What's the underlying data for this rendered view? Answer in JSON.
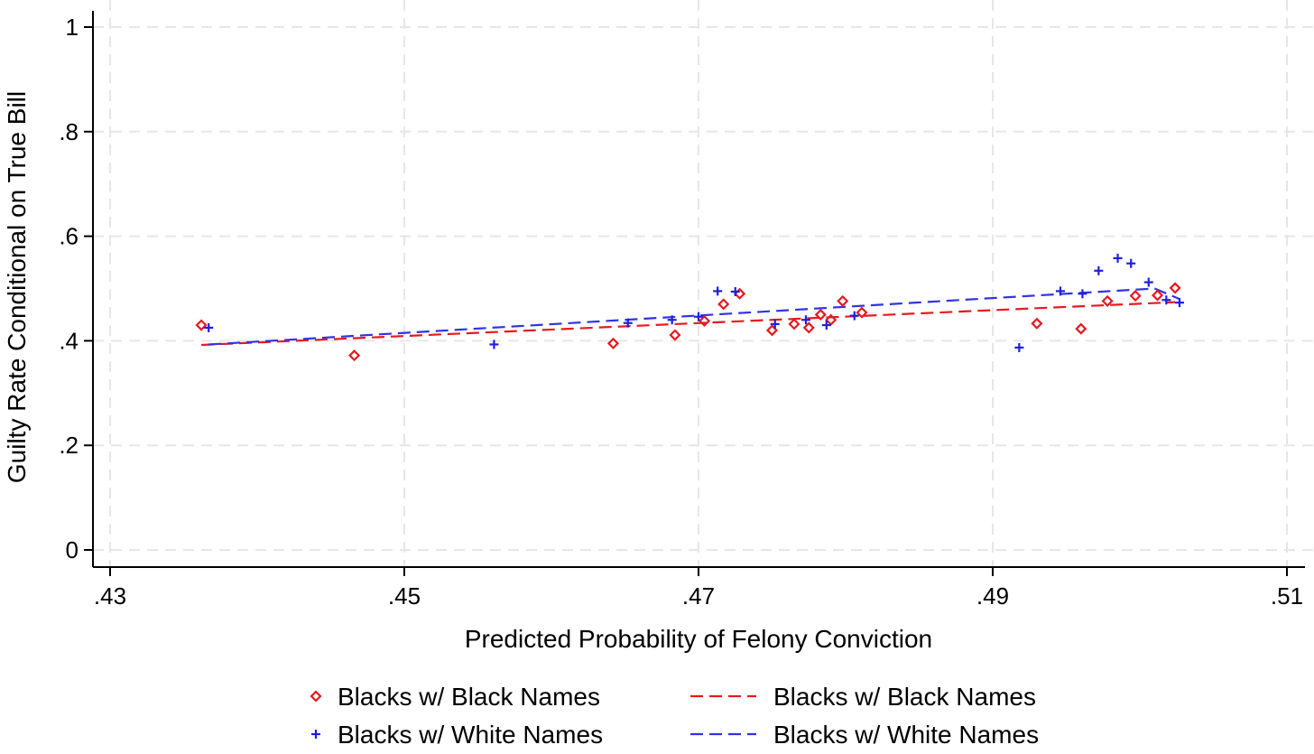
{
  "chart_data": {
    "type": "scatter",
    "xlabel": "Predicted Probability of Felony Conviction",
    "ylabel": "Guilty Rate Conditional on True Bill",
    "xlim": [
      0.43,
      0.51
    ],
    "ylim": [
      0,
      1
    ],
    "x_ticks": [
      {
        "value": 0.43,
        "label": ".43"
      },
      {
        "value": 0.45,
        "label": ".45"
      },
      {
        "value": 0.47,
        "label": ".47"
      },
      {
        "value": 0.49,
        "label": ".49"
      },
      {
        "value": 0.51,
        "label": ".51"
      }
    ],
    "y_ticks": [
      {
        "value": 0,
        "label": "0"
      },
      {
        "value": 0.2,
        "label": ".2"
      },
      {
        "value": 0.4,
        "label": ".4"
      },
      {
        "value": 0.6,
        "label": ".6"
      },
      {
        "value": 0.8,
        "label": ".8"
      },
      {
        "value": 1,
        "label": "1"
      }
    ],
    "grid": true,
    "legend_position": "bottom",
    "series": [
      {
        "name": "Blacks w/ Black Names",
        "marker": "diamond",
        "color": "#e8191f",
        "points": [
          {
            "x": 0.4362,
            "y": 0.43
          },
          {
            "x": 0.4466,
            "y": 0.372
          },
          {
            "x": 0.4642,
            "y": 0.395
          },
          {
            "x": 0.4684,
            "y": 0.411
          },
          {
            "x": 0.4704,
            "y": 0.438
          },
          {
            "x": 0.4717,
            "y": 0.47
          },
          {
            "x": 0.4728,
            "y": 0.49
          },
          {
            "x": 0.475,
            "y": 0.42
          },
          {
            "x": 0.4765,
            "y": 0.432
          },
          {
            "x": 0.4775,
            "y": 0.425
          },
          {
            "x": 0.4783,
            "y": 0.45
          },
          {
            "x": 0.479,
            "y": 0.44
          },
          {
            "x": 0.4798,
            "y": 0.476
          },
          {
            "x": 0.4811,
            "y": 0.454
          },
          {
            "x": 0.493,
            "y": 0.433
          },
          {
            "x": 0.496,
            "y": 0.423
          },
          {
            "x": 0.4978,
            "y": 0.476
          },
          {
            "x": 0.4997,
            "y": 0.486
          },
          {
            "x": 0.5012,
            "y": 0.487
          },
          {
            "x": 0.5024,
            "y": 0.501
          }
        ]
      },
      {
        "name": "Blacks w/ White Names",
        "marker": "plus",
        "color": "#1f1fe0",
        "points": [
          {
            "x": 0.4367,
            "y": 0.425
          },
          {
            "x": 0.4561,
            "y": 0.393
          },
          {
            "x": 0.4652,
            "y": 0.434
          },
          {
            "x": 0.4682,
            "y": 0.44
          },
          {
            "x": 0.47,
            "y": 0.446
          },
          {
            "x": 0.4713,
            "y": 0.495
          },
          {
            "x": 0.4725,
            "y": 0.494
          },
          {
            "x": 0.4752,
            "y": 0.432
          },
          {
            "x": 0.4773,
            "y": 0.44
          },
          {
            "x": 0.4787,
            "y": 0.43
          },
          {
            "x": 0.4806,
            "y": 0.448
          },
          {
            "x": 0.4918,
            "y": 0.387
          },
          {
            "x": 0.4946,
            "y": 0.495
          },
          {
            "x": 0.4961,
            "y": 0.49
          },
          {
            "x": 0.4972,
            "y": 0.534
          },
          {
            "x": 0.4985,
            "y": 0.558
          },
          {
            "x": 0.4994,
            "y": 0.548
          },
          {
            "x": 0.5006,
            "y": 0.512
          },
          {
            "x": 0.5018,
            "y": 0.478
          },
          {
            "x": 0.5027,
            "y": 0.473
          }
        ]
      },
      {
        "name": "Blacks w/ Black Names",
        "type": "fit_line",
        "style": "dashed",
        "color": "#e8191f",
        "points": [
          {
            "x": 0.4362,
            "y": 0.392
          },
          {
            "x": 0.5024,
            "y": 0.474
          }
        ]
      },
      {
        "name": "Blacks w/ White Names",
        "type": "fit_line",
        "style": "dashed",
        "color": "#3232e6",
        "points": [
          {
            "x": 0.4367,
            "y": 0.393
          },
          {
            "x": 0.501,
            "y": 0.5
          },
          {
            "x": 0.5027,
            "y": 0.48
          }
        ]
      }
    ]
  }
}
